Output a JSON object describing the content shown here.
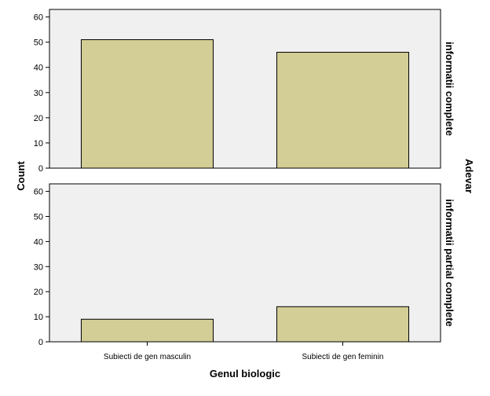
{
  "chart_data": {
    "type": "bar",
    "categories": [
      "Subiecti de gen masculin",
      "Subiecti de gen feminin"
    ],
    "xlabel": "Genul biologic",
    "ylabel": "Count",
    "facet_title": "Adevar",
    "ylim": [
      0,
      63
    ],
    "yticks": [
      0,
      10,
      20,
      30,
      40,
      50,
      60
    ],
    "grid": false,
    "bar_color": "#d3cd96",
    "panel_background": "#f0f0f0",
    "panels": [
      {
        "label": "informatii complete",
        "values": [
          51,
          46
        ]
      },
      {
        "label": "informatii partial complete",
        "values": [
          9,
          14
        ]
      }
    ]
  }
}
